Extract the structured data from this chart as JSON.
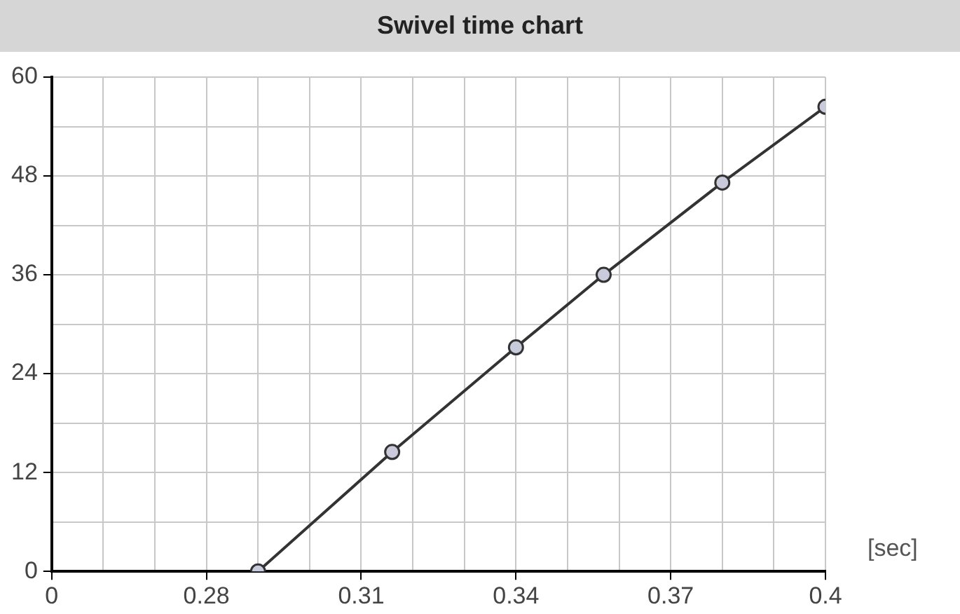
{
  "chart_data": {
    "type": "line",
    "title": "Swivel time chart",
    "xlabel": "[sec]",
    "x": [
      0.29,
      0.316,
      0.34,
      0.357,
      0.38,
      0.4
    ],
    "series": [
      {
        "color": "#333333",
        "values": [
          0,
          14.5,
          27.2,
          36,
          47.2,
          56.4
        ]
      }
    ],
    "xlim": [
      0.25,
      0.4
    ],
    "xticks": [
      {
        "value": 0.25,
        "label": "0"
      },
      {
        "value": 0.26,
        "label": null
      },
      {
        "value": 0.27,
        "label": null
      },
      0.28,
      {
        "value": 0.29,
        "label": null
      },
      {
        "value": 0.3,
        "label": null
      },
      0.31,
      {
        "value": 0.32,
        "label": null
      },
      {
        "value": 0.33,
        "label": null
      },
      0.34,
      {
        "value": 0.35,
        "label": null
      },
      {
        "value": 0.36,
        "label": null
      },
      0.37,
      {
        "value": 0.38,
        "label": null
      },
      {
        "value": 0.39,
        "label": null
      },
      0.4
    ],
    "ylim": [
      0,
      60
    ],
    "yticks": [
      0,
      {
        "value": 6,
        "label": null
      },
      12,
      {
        "value": 18,
        "label": null
      },
      24,
      {
        "value": 30,
        "label": null
      },
      36,
      {
        "value": 42,
        "label": null
      },
      48,
      {
        "value": 54,
        "label": null
      },
      60
    ],
    "grid": true,
    "legend": false,
    "marker": "circle",
    "line_style": "solid"
  }
}
